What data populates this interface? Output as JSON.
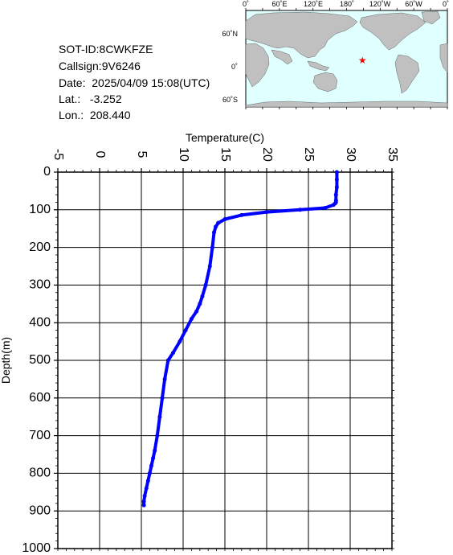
{
  "info": {
    "sot_id": "SOT-ID:8CWKFZE",
    "callsign": "Callsign:9V6246",
    "date": "Date:  2025/04/09 15:08(UTC)",
    "lat": "Lat.:   -3.252",
    "lon": "Lon.:  208.440"
  },
  "map": {
    "lon_labels": [
      "0˚",
      "60˚E",
      "120˚E",
      "180˚",
      "120˚W",
      "60˚W",
      "0˚"
    ],
    "lat_labels": [
      "60˚N",
      "0˚",
      "60˚S"
    ],
    "marker": {
      "lat": -3.252,
      "lon": 208.44,
      "symbol": "★",
      "color": "#ff0000"
    },
    "ocean_color": "#e0ffff",
    "land_color": "#c0c0c0"
  },
  "chart_data": {
    "type": "line",
    "xlabel": "Temperature(C)",
    "ylabel": "Depth(m)",
    "xlim": [
      -5,
      35
    ],
    "ylim": [
      1000,
      0
    ],
    "x_ticks": [
      "-5",
      "0",
      "5",
      "10",
      "15",
      "20",
      "25",
      "30",
      "35"
    ],
    "y_ticks": [
      "0",
      "100",
      "200",
      "300",
      "400",
      "500",
      "600",
      "700",
      "800",
      "900",
      "1000"
    ],
    "grid": true,
    "color": "#0000ff",
    "series": [
      {
        "x": [
          28.4,
          28.4,
          28.4,
          28.3,
          28.3,
          28.3,
          28.2,
          28.0,
          27.0,
          24.0,
          20.0,
          17.0,
          15.0,
          14.2,
          13.9,
          13.7,
          13.5,
          13.2,
          12.7,
          12.3,
          12.0,
          11.6,
          11.0,
          10.3,
          9.6,
          8.8,
          8.2,
          7.8,
          7.5,
          7.2,
          6.9,
          6.6,
          6.4,
          6.2,
          6.0,
          5.8,
          5.6,
          5.4,
          5.3,
          5.3
        ],
        "y": [
          0,
          20,
          40,
          60,
          75,
          80,
          83,
          87,
          95,
          100,
          106,
          114,
          125,
          135,
          145,
          160,
          200,
          250,
          300,
          330,
          350,
          370,
          390,
          420,
          450,
          480,
          500,
          550,
          600,
          650,
          700,
          740,
          760,
          780,
          800,
          820,
          840,
          860,
          875,
          885
        ]
      }
    ]
  }
}
